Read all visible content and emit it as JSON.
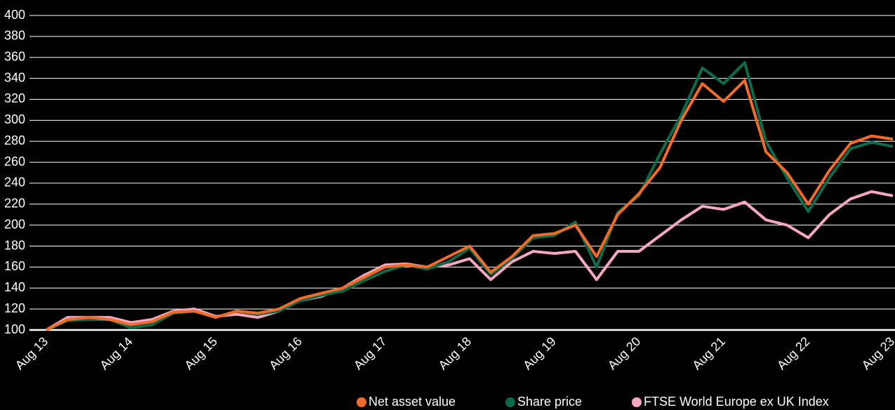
{
  "chart_data": {
    "type": "line",
    "categories": [
      "Aug 13",
      null,
      null,
      null,
      "Aug 14",
      null,
      null,
      null,
      "Aug 15",
      null,
      null,
      null,
      "Aug 16",
      null,
      null,
      null,
      "Aug 17",
      null,
      null,
      null,
      "Aug 18",
      null,
      null,
      null,
      "Aug 19",
      null,
      null,
      null,
      "Aug 20",
      null,
      null,
      null,
      "Aug 21",
      null,
      null,
      null,
      "Aug 22",
      null,
      null,
      null,
      "Aug 23"
    ],
    "series": [
      {
        "name": "Net asset value",
        "color": "#f26b2a",
        "values": [
          100,
          110,
          112,
          110,
          105,
          108,
          117,
          118,
          112,
          118,
          116,
          120,
          130,
          135,
          140,
          150,
          160,
          162,
          160,
          170,
          180,
          155,
          170,
          190,
          192,
          200,
          170,
          210,
          230,
          255,
          300,
          335,
          318,
          338,
          270,
          250,
          220,
          252,
          278,
          285,
          282
        ]
      },
      {
        "name": "Share price",
        "color": "#0b6b4a",
        "values": [
          100,
          109,
          110,
          110,
          102,
          105,
          116,
          118,
          112,
          118,
          115,
          118,
          128,
          133,
          137,
          147,
          156,
          162,
          158,
          165,
          178,
          153,
          168,
          188,
          190,
          203,
          160,
          212,
          228,
          268,
          305,
          350,
          335,
          355,
          280,
          245,
          213,
          245,
          273,
          279,
          275
        ]
      },
      {
        "name": "FTSE World Europe ex UK Index",
        "color": "#f6a8c0",
        "values": [
          100,
          112,
          112,
          112,
          107,
          110,
          118,
          120,
          113,
          115,
          112,
          118,
          128,
          132,
          140,
          152,
          162,
          163,
          160,
          162,
          168,
          148,
          165,
          175,
          173,
          175,
          148,
          175,
          175,
          190,
          205,
          218,
          215,
          222,
          205,
          200,
          188,
          210,
          225,
          232,
          228
        ]
      }
    ],
    "ylim": [
      100,
      400
    ],
    "yticks": [
      100,
      120,
      140,
      160,
      180,
      200,
      220,
      240,
      260,
      280,
      300,
      320,
      340,
      360,
      380,
      400
    ],
    "grid": true
  }
}
